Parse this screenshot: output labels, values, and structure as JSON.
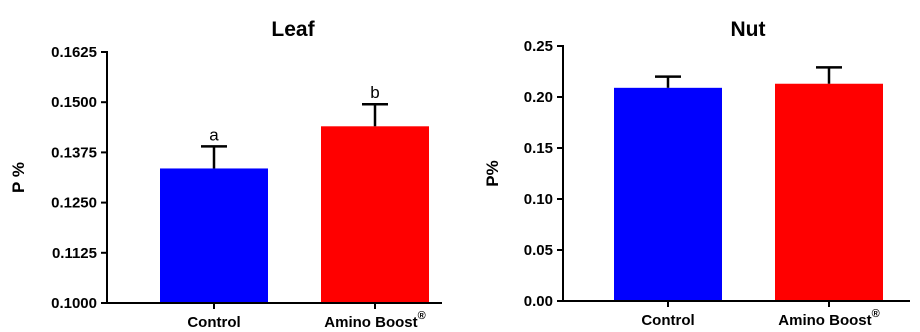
{
  "chart_data": [
    {
      "type": "bar",
      "title": "Leaf",
      "ylabel": "P %",
      "xlabel": "",
      "categories": [
        "Control",
        "Amino Boost®"
      ],
      "values": [
        0.1335,
        0.144
      ],
      "errors": [
        0.0055,
        0.0055
      ],
      "annotations": [
        "a",
        "b"
      ],
      "ylim": [
        0.1,
        0.1625
      ],
      "yticks": [
        0.1,
        0.1125,
        0.125,
        0.1375,
        0.15,
        0.1625
      ],
      "ytick_labels": [
        "0.1000",
        "0.1125",
        "0.1250",
        "0.1375",
        "0.1500",
        "0.1625"
      ],
      "colors": [
        "#0000ff",
        "#ff0000"
      ],
      "grid": false
    },
    {
      "type": "bar",
      "title": "Nut",
      "ylabel": "P%",
      "xlabel": "",
      "categories": [
        "Control",
        "Amino Boost®"
      ],
      "values": [
        0.209,
        0.213
      ],
      "errors": [
        0.011,
        0.016
      ],
      "annotations": [],
      "ylim": [
        0.0,
        0.25
      ],
      "yticks": [
        0.0,
        0.05,
        0.1,
        0.15,
        0.2,
        0.25
      ],
      "ytick_labels": [
        "0.00",
        "0.05",
        "0.10",
        "0.15",
        "0.20",
        "0.25"
      ],
      "colors": [
        "#0000ff",
        "#ff0000"
      ],
      "grid": false
    }
  ]
}
